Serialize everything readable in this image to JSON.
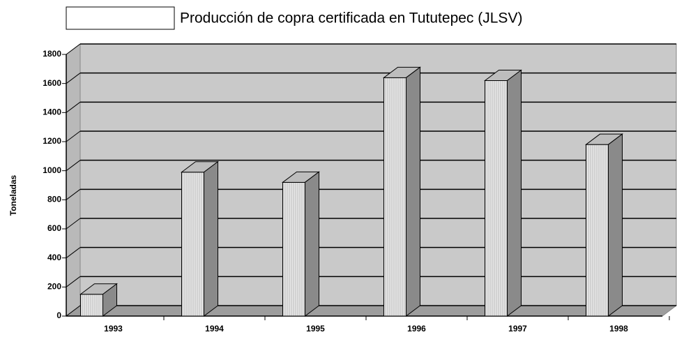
{
  "chart_data": {
    "type": "bar3d",
    "categories": [
      "1993",
      "1994",
      "1995",
      "1996",
      "1997",
      "1998"
    ],
    "series": [
      {
        "name": "Producción de copra certificada en Tututepec (JLSV)",
        "color": "#ffffff",
        "values": [
          150,
          990,
          920,
          1640,
          1620,
          1180
        ]
      }
    ],
    "y_label": "Toneladas",
    "ylim": [
      0,
      1800
    ],
    "yticks": [
      0,
      200,
      400,
      600,
      800,
      1000,
      1200,
      1400,
      1600,
      1800
    ],
    "grid": true,
    "legend": "top"
  }
}
